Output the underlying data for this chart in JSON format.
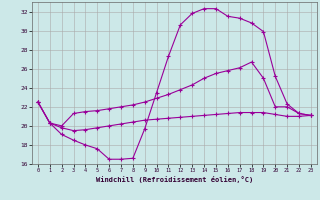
{
  "xlabel": "Windchill (Refroidissement éolien,°C)",
  "background_color": "#cce8e8",
  "line_color": "#990099",
  "grid_color": "#aaaaaa",
  "xlim": [
    -0.5,
    23.5
  ],
  "ylim": [
    16,
    33
  ],
  "yticks": [
    16,
    18,
    20,
    22,
    24,
    26,
    28,
    30,
    32
  ],
  "xticks": [
    0,
    1,
    2,
    3,
    4,
    5,
    6,
    7,
    8,
    9,
    10,
    11,
    12,
    13,
    14,
    15,
    16,
    17,
    18,
    19,
    20,
    21,
    22,
    23
  ],
  "line1_x": [
    0,
    1,
    2,
    3,
    4,
    5,
    6,
    7,
    8,
    9,
    10,
    11,
    12,
    13,
    14,
    15,
    16,
    17,
    18,
    19,
    20,
    21,
    22,
    23
  ],
  "line1_y": [
    22.5,
    20.3,
    19.1,
    18.5,
    18.0,
    17.6,
    16.5,
    16.5,
    16.6,
    19.7,
    23.5,
    27.3,
    30.6,
    31.8,
    32.3,
    32.3,
    31.5,
    31.3,
    30.8,
    29.9,
    25.2,
    22.3,
    21.3,
    21.1
  ],
  "line2_x": [
    0,
    1,
    2,
    3,
    4,
    5,
    6,
    7,
    8,
    9,
    10,
    11,
    12,
    13,
    14,
    15,
    16,
    17,
    18,
    19,
    20,
    21,
    22,
    23
  ],
  "line2_y": [
    22.5,
    20.3,
    20.0,
    21.3,
    21.5,
    21.6,
    21.8,
    22.0,
    22.2,
    22.5,
    22.9,
    23.3,
    23.8,
    24.3,
    25.0,
    25.5,
    25.8,
    26.1,
    26.7,
    25.0,
    22.0,
    22.0,
    21.3,
    21.1
  ],
  "line3_x": [
    0,
    1,
    2,
    3,
    4,
    5,
    6,
    7,
    8,
    9,
    10,
    11,
    12,
    13,
    14,
    15,
    16,
    17,
    18,
    19,
    20,
    21,
    22,
    23
  ],
  "line3_y": [
    22.5,
    20.3,
    19.8,
    19.5,
    19.6,
    19.8,
    20.0,
    20.2,
    20.4,
    20.6,
    20.7,
    20.8,
    20.9,
    21.0,
    21.1,
    21.2,
    21.3,
    21.4,
    21.4,
    21.4,
    21.2,
    21.0,
    21.0,
    21.1
  ]
}
